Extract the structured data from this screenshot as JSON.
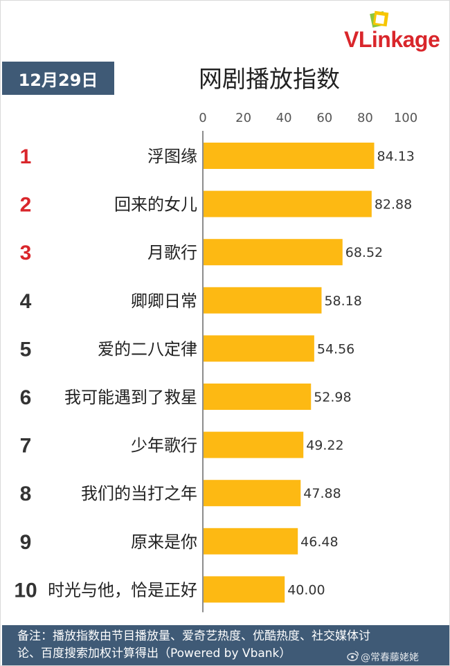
{
  "brand": {
    "name": "VLinkage"
  },
  "date": "12月29日",
  "chart_data": {
    "type": "bar",
    "orientation": "horizontal",
    "title": "网剧播放指数",
    "ranks": [
      "1",
      "2",
      "3",
      "4",
      "5",
      "6",
      "7",
      "8",
      "9",
      "10"
    ],
    "categories": [
      "浮图缘",
      "回来的女儿",
      "月歌行",
      "卿卿日常",
      "爱的二八定律",
      "我可能遇到了救星",
      "少年歌行",
      "我们的当打之年",
      "原来是你",
      "时光与他，恰是正好"
    ],
    "values": [
      84.13,
      82.88,
      68.52,
      58.18,
      54.56,
      52.98,
      49.22,
      47.88,
      46.48,
      40.0
    ],
    "value_labels": [
      "84.13",
      "82.88",
      "68.52",
      "58.18",
      "54.56",
      "52.98",
      "49.22",
      "47.88",
      "46.48",
      "40.00"
    ],
    "xlim": [
      0,
      100
    ],
    "ticks": [
      "0",
      "20",
      "40",
      "60",
      "80",
      "100"
    ],
    "axis_position": "top",
    "grid": false,
    "colors": {
      "bar": "#FDB913",
      "rank_top": "#D9262B",
      "rank_other": "#333333"
    }
  },
  "footer": {
    "line1": "备注：播放指数由节目播放量、爱奇艺热度、优酷热度、社交媒体讨",
    "line2": "论、百度搜索加权计算得出（Powered by Vbank）"
  },
  "watermark": "@常春藤姥姥"
}
